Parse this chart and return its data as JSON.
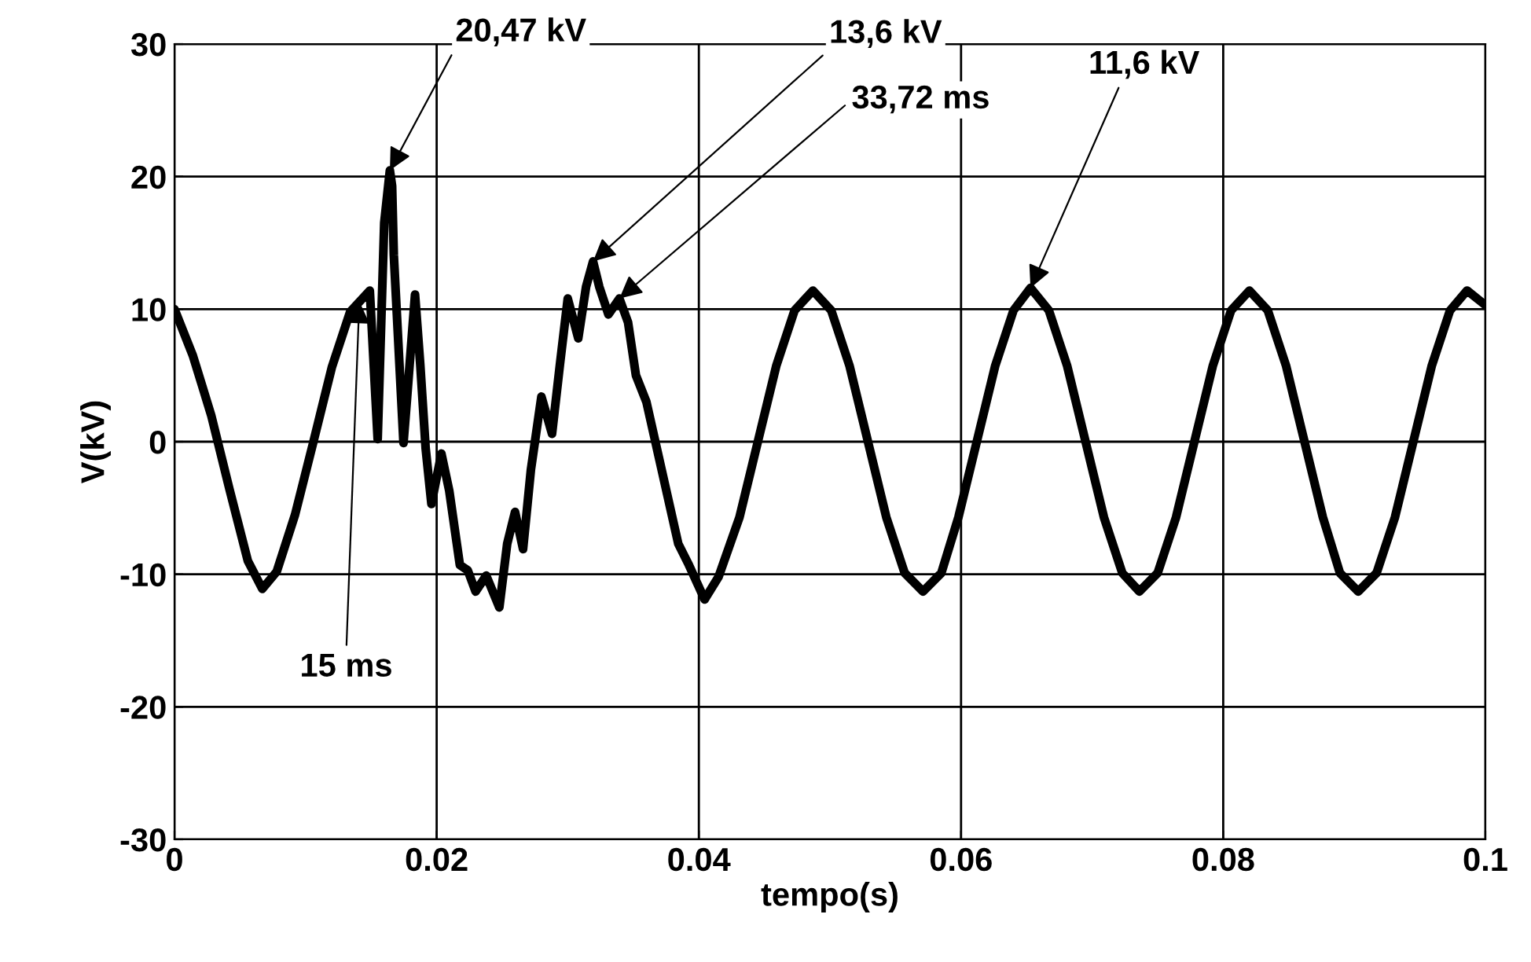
{
  "chart_data": {
    "type": "line",
    "xlabel": "tempo(s)",
    "ylabel": "V(kV)",
    "xlim": [
      0,
      0.1
    ],
    "xticks": [
      0,
      0.02,
      0.04,
      0.06,
      0.08,
      0.1
    ],
    "ylim": [
      -30,
      30
    ],
    "yticks": [
      -30,
      -20,
      -10,
      0,
      10,
      20,
      30
    ],
    "grid": true,
    "legend": false,
    "marker": "none",
    "line_style": "solid",
    "series": [
      {
        "color": "#000000",
        "x": [
          0,
          0.0014,
          0.0028,
          0.0042,
          0.0056,
          0.0067,
          0.0078,
          0.0092,
          0.0106,
          0.012,
          0.0134,
          0.0149,
          0.0155,
          0.016,
          0.01643,
          0.0166,
          0.01673,
          0.01747,
          0.01775,
          0.01835,
          0.01875,
          0.01916,
          0.0196,
          0.02036,
          0.02096,
          0.02177,
          0.02237,
          0.02297,
          0.02378,
          0.02478,
          0.02538,
          0.02598,
          0.02659,
          0.02719,
          0.02799,
          0.0288,
          0.0294,
          0.03,
          0.0308,
          0.0314,
          0.03193,
          0.0324,
          0.0331,
          0.03394,
          0.0346,
          0.0352,
          0.036,
          0.03843,
          0.03924,
          0.04044,
          0.0415,
          0.0431,
          0.0445,
          0.0459,
          0.0473,
          0.0487,
          0.0501,
          0.0515,
          0.0529,
          0.0543,
          0.0557,
          0.0571,
          0.0585,
          0.0598,
          0.0612,
          0.0626,
          0.064,
          0.0653,
          0.0667,
          0.0681,
          0.0695,
          0.0709,
          0.0723,
          0.0736,
          0.075,
          0.0764,
          0.0778,
          0.0792,
          0.0806,
          0.082,
          0.0834,
          0.0848,
          0.0862,
          0.0876,
          0.0889,
          0.0903,
          0.0917,
          0.0931,
          0.0945,
          0.0959,
          0.0973,
          0.0986,
          0.1
        ],
        "values": [
          10,
          6.5,
          2.0,
          -3.6,
          -9.0,
          -11.1,
          -9.8,
          -5.5,
          0,
          5.6,
          9.8,
          11.4,
          0.2,
          16.5,
          20.47,
          19.3,
          14.1,
          -0.1,
          3.4,
          11.1,
          5.8,
          -0.5,
          -4.7,
          -0.9,
          -3.7,
          -9.3,
          -9.7,
          -11.3,
          -10.1,
          -12.5,
          -7.7,
          -5.3,
          -8.1,
          -2.1,
          3.4,
          0.6,
          5.8,
          10.8,
          7.8,
          11.7,
          13.6,
          11.7,
          9.6,
          10.8,
          9.0,
          5.0,
          3.0,
          -7.7,
          -9.3,
          -11.9,
          -10.2,
          -5.7,
          0,
          5.7,
          9.9,
          11.4,
          9.9,
          5.7,
          0,
          -5.7,
          -9.9,
          -11.3,
          -9.9,
          -5.7,
          0,
          5.7,
          9.9,
          11.6,
          9.9,
          5.7,
          0,
          -5.7,
          -9.9,
          -11.3,
          -9.9,
          -5.7,
          0,
          5.7,
          9.9,
          11.4,
          9.9,
          5.7,
          0,
          -5.7,
          -9.9,
          -11.3,
          -9.9,
          -5.7,
          0,
          5.7,
          9.9,
          11.4,
          10.3
        ]
      }
    ],
    "annotations": [
      {
        "text": "20,47 kV",
        "x": 0.01643,
        "y": 20.47
      },
      {
        "text": "13,6 kV",
        "x": 0.03193,
        "y": 13.6
      },
      {
        "text": "33,72 ms",
        "x": 0.03394,
        "y": 10.8
      },
      {
        "text": "11,6 kV",
        "x": 0.0653,
        "y": 11.6
      },
      {
        "text": "15 ms",
        "x": 0.0141,
        "y": 10.6
      }
    ]
  }
}
